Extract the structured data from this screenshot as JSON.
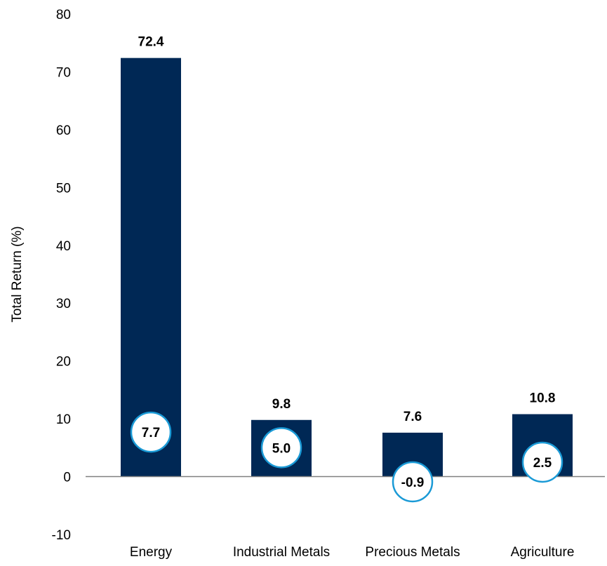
{
  "chart_data": {
    "type": "bar",
    "categories": [
      "Energy",
      "Industrial Metals",
      "Precious Metals",
      "Agriculture"
    ],
    "series": [
      {
        "values": [
          72.4,
          9.8,
          7.6,
          10.8
        ]
      },
      {
        "values": [
          7.7,
          5.0,
          -0.9,
          2.5
        ]
      }
    ],
    "bar_labels": [
      "72.4",
      "9.8",
      "7.6",
      "10.8"
    ],
    "bubble_labels": [
      "7.7",
      "5.0",
      "-0.9",
      "2.5"
    ],
    "ylabel": "Total Return (%)",
    "ylim": [
      -10,
      80
    ],
    "yticks": [
      -10,
      0,
      10,
      20,
      30,
      40,
      50,
      60,
      70,
      80
    ],
    "ytick_labels": [
      "-10",
      "0",
      "10",
      "20",
      "30",
      "40",
      "50",
      "60",
      "70",
      "80"
    ],
    "grid": false,
    "colors": {
      "bar": "#002855",
      "bubble_stroke": "#1a9ad6",
      "bubble_fill": "#ffffff",
      "axis": "#808080"
    }
  }
}
